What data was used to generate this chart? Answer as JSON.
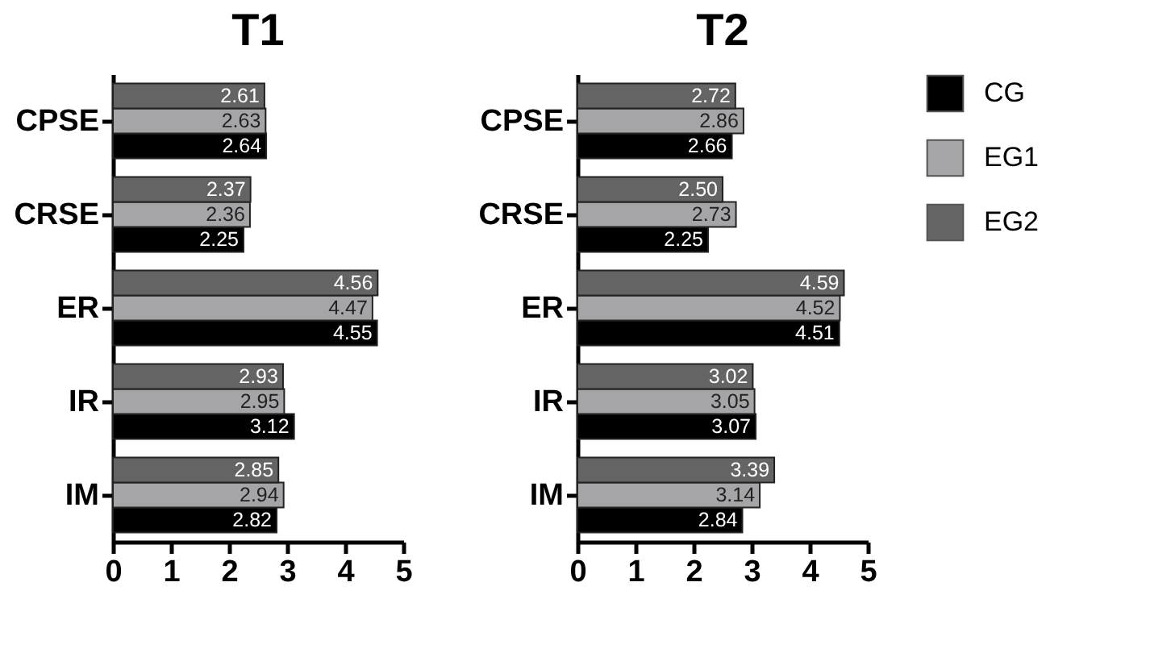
{
  "chart_data": [
    {
      "type": "bar",
      "orientation": "horizontal",
      "title": "T1",
      "categories": [
        "CPSE",
        "CRSE",
        "ER",
        "IR",
        "IM"
      ],
      "xlim": [
        0,
        5
      ],
      "xticks": [
        0,
        1,
        2,
        3,
        4,
        5
      ],
      "grid": false,
      "legend": "right",
      "series": [
        {
          "name": "CG",
          "color": "#000000",
          "values": [
            2.64,
            2.25,
            4.55,
            3.12,
            2.82
          ],
          "value_labels": [
            "2.64",
            "2.25",
            "4.55",
            "3.12",
            "2.82"
          ]
        },
        {
          "name": "EG1",
          "color": "#a5a5a8",
          "values": [
            2.63,
            2.36,
            4.47,
            2.95,
            2.94
          ],
          "value_labels": [
            "2.63",
            "2.36",
            "4.47",
            "2.95",
            "2.94"
          ]
        },
        {
          "name": "EG2",
          "color": "#646464",
          "values": [
            2.61,
            2.37,
            4.56,
            2.93,
            2.85
          ],
          "value_labels": [
            "2.61",
            "2.37",
            "4.56",
            "2.93",
            "2.85"
          ]
        }
      ]
    },
    {
      "type": "bar",
      "orientation": "horizontal",
      "title": "T2",
      "categories": [
        "CPSE",
        "CRSE",
        "ER",
        "IR",
        "IM"
      ],
      "xlim": [
        0,
        5
      ],
      "xticks": [
        0,
        1,
        2,
        3,
        4,
        5
      ],
      "grid": false,
      "legend": "right",
      "series": [
        {
          "name": "CG",
          "color": "#000000",
          "values": [
            2.66,
            2.25,
            4.51,
            3.07,
            2.84
          ],
          "value_labels": [
            "2.66",
            "2.25",
            "4.51",
            "3.07",
            "2.84"
          ]
        },
        {
          "name": "EG1",
          "color": "#a5a5a8",
          "values": [
            2.86,
            2.73,
            4.52,
            3.05,
            3.14
          ],
          "value_labels": [
            "2.86",
            "2.73",
            "4.52",
            "3.05",
            "3.14"
          ]
        },
        {
          "name": "EG2",
          "color": "#646464",
          "values": [
            2.72,
            2.5,
            4.59,
            3.02,
            3.39
          ],
          "value_labels": [
            "2.72",
            "2.50",
            "4.59",
            "3.02",
            "3.39"
          ]
        }
      ]
    }
  ]
}
